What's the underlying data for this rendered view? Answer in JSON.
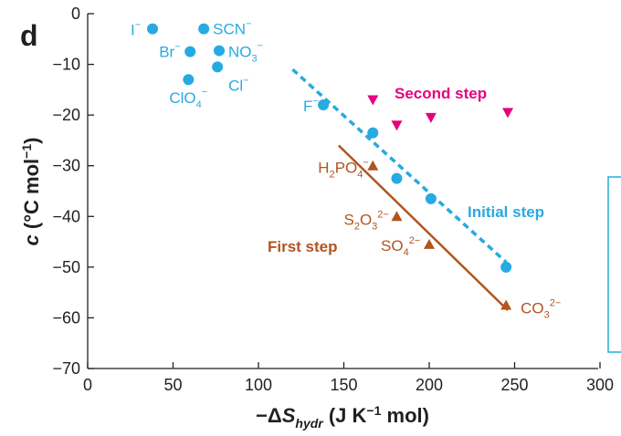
{
  "panel_letter": "d",
  "chart_data": {
    "type": "scatter",
    "xlim": [
      0,
      300
    ],
    "ylim": [
      -70,
      0
    ],
    "xticks": [
      0,
      50,
      100,
      150,
      200,
      250,
      300
    ],
    "yticks": [
      0,
      -10,
      -20,
      -30,
      -40,
      -50,
      -60,
      -70
    ],
    "xlabel": {
      "prefix": "−Δ",
      "var": "S",
      "sub": "hydr",
      "units": " (J K",
      "exp": "−1",
      "tail": " mol)"
    },
    "ylabel": {
      "var": "c",
      "units": " (°C mol",
      "exp": "−1",
      "tail": ")"
    },
    "grid": false,
    "colors": {
      "blue": "#27aae1",
      "brown": "#b0551f",
      "magenta": "#e6007e",
      "axis": "#231f20"
    },
    "ions_blue": [
      {
        "x": 38,
        "y": -3,
        "base": "I",
        "sup": "−",
        "sub": ""
      },
      {
        "x": 68,
        "y": -3,
        "base": "SCN",
        "sup": "−",
        "sub": ""
      },
      {
        "x": 60,
        "y": -7.5,
        "base": "Br",
        "sup": "−",
        "sub": ""
      },
      {
        "x": 77,
        "y": -7.3,
        "base": "NO",
        "sup": "−",
        "sub": "3"
      },
      {
        "x": 59,
        "y": -13,
        "base": "ClO",
        "sup": "−",
        "sub": "4"
      },
      {
        "x": 76,
        "y": -10.5,
        "base": "Cl",
        "sup": "−",
        "sub": ""
      },
      {
        "x": 138,
        "y": -18,
        "base": "F",
        "sup": "−",
        "sub": ""
      }
    ],
    "initial_step_points": [
      {
        "x": 167,
        "y": -23.5
      },
      {
        "x": 181,
        "y": -32.5
      },
      {
        "x": 201,
        "y": -36.5
      },
      {
        "x": 245,
        "y": -50
      }
    ],
    "initial_step_fit": {
      "x": [
        120,
        245
      ],
      "y": [
        -11,
        -49
      ]
    },
    "first_step_points": [
      {
        "x": 167,
        "y": -30,
        "base": "H",
        "sub": "2",
        "base2": "PO",
        "sub2": "4",
        "sup": "−"
      },
      {
        "x": 181,
        "y": -40,
        "base": "S",
        "sub": "2",
        "base2": "O",
        "sub2": "3",
        "sup": "2−"
      },
      {
        "x": 200,
        "y": -45.5,
        "base": "SO",
        "sub": "4",
        "base2": "",
        "sub2": "",
        "sup": "2−"
      },
      {
        "x": 245,
        "y": -57.5,
        "base": "CO",
        "sub": "3",
        "base2": "",
        "sub2": "",
        "sup": "2−"
      }
    ],
    "first_step_fit": {
      "x": [
        147,
        246
      ],
      "y": [
        -26,
        -58.5
      ]
    },
    "second_step_points": [
      {
        "x": 167,
        "y": -17
      },
      {
        "x": 181,
        "y": -22
      },
      {
        "x": 201,
        "y": -20.5
      },
      {
        "x": 246,
        "y": -19.5
      }
    ],
    "series_labels": {
      "initial": "Initial step",
      "first": "First step",
      "second": "Second step"
    }
  }
}
